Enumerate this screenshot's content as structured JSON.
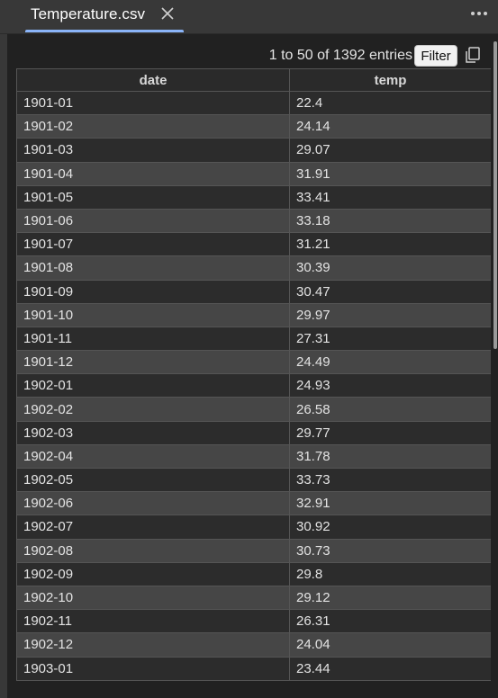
{
  "tab": {
    "title": "Temperature.csv"
  },
  "table_info": {
    "entries_text": "1 to 50 of 1392 entries",
    "filter_label": "Filter"
  },
  "columns": [
    "date",
    "temp"
  ],
  "rows": [
    [
      "1901-01",
      "22.4"
    ],
    [
      "1901-02",
      "24.14"
    ],
    [
      "1901-03",
      "29.07"
    ],
    [
      "1901-04",
      "31.91"
    ],
    [
      "1901-05",
      "33.41"
    ],
    [
      "1901-06",
      "33.18"
    ],
    [
      "1901-07",
      "31.21"
    ],
    [
      "1901-08",
      "30.39"
    ],
    [
      "1901-09",
      "30.47"
    ],
    [
      "1901-10",
      "29.97"
    ],
    [
      "1901-11",
      "27.31"
    ],
    [
      "1901-12",
      "24.49"
    ],
    [
      "1902-01",
      "24.93"
    ],
    [
      "1902-02",
      "26.58"
    ],
    [
      "1902-03",
      "29.77"
    ],
    [
      "1902-04",
      "31.78"
    ],
    [
      "1902-05",
      "33.73"
    ],
    [
      "1902-06",
      "32.91"
    ],
    [
      "1902-07",
      "30.92"
    ],
    [
      "1902-08",
      "30.73"
    ],
    [
      "1902-09",
      "29.8"
    ],
    [
      "1902-10",
      "29.12"
    ],
    [
      "1902-11",
      "26.31"
    ],
    [
      "1902-12",
      "24.04"
    ],
    [
      "1903-01",
      "23.44"
    ]
  ],
  "icons": {
    "close": "close-icon",
    "more": "more-horizontal-icon",
    "copy": "copy-icon"
  },
  "colors": {
    "accent": "#8ab4f8",
    "row_odd": "#2c2c2c",
    "row_even": "#464646",
    "panel": "#212121"
  }
}
